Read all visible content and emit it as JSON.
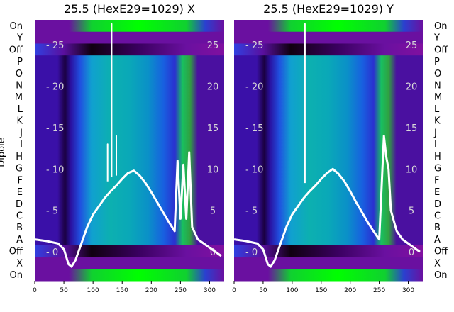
{
  "chart_data": [
    {
      "type": "heatmap",
      "title": "25.5 (HexE29=1029) X",
      "ylabel": "Dipole",
      "x_ticks": [
        0,
        50,
        100,
        150,
        200,
        250,
        300
      ],
      "xlim": [
        0,
        325
      ],
      "categories": [
        "On",
        "Y",
        "Off",
        "P",
        "O",
        "N",
        "M",
        "L",
        "K",
        "J",
        "I",
        "H",
        "G",
        "F",
        "E",
        "D",
        "C",
        "B",
        "A",
        "Off",
        "X",
        "On"
      ],
      "overlay_ticks": [
        25,
        20,
        15,
        10,
        5,
        0
      ],
      "overlay_ylim": [
        -3.5,
        28
      ],
      "overlay_series": [
        {
          "x": [
            0,
            20,
            40,
            50,
            58,
            63,
            70,
            80,
            90,
            100,
            110,
            120,
            130,
            140,
            150,
            160,
            170,
            180,
            190,
            200,
            210,
            220,
            230,
            240,
            245,
            250,
            255,
            260,
            265,
            270,
            280,
            290,
            300,
            310,
            320
          ],
          "y": [
            1.5,
            1.3,
            1.0,
            0.3,
            -1.5,
            -1.8,
            -1.0,
            1.0,
            3.0,
            4.5,
            5.5,
            6.5,
            7.3,
            8.0,
            8.8,
            9.5,
            9.8,
            9.2,
            8.3,
            7.2,
            6.0,
            4.8,
            3.6,
            2.5,
            11.0,
            4.0,
            10.5,
            4.0,
            12.0,
            3.0,
            1.5,
            1.0,
            0.5,
            0.0,
            -0.5
          ]
        },
        {
          "x": [
            125,
            125,
            125
          ],
          "y": [
            8.5,
            13.0,
            8.5
          ]
        },
        {
          "x": [
            132,
            132,
            132
          ],
          "y": [
            9.0,
            27.5,
            9.0
          ]
        },
        {
          "x": [
            140,
            140,
            140
          ],
          "y": [
            9.2,
            14.0,
            9.2
          ]
        }
      ]
    },
    {
      "type": "heatmap",
      "title": "25.5 (HexE29=1029) Y",
      "x_ticks": [
        0,
        50,
        100,
        150,
        200,
        250,
        300
      ],
      "xlim": [
        0,
        325
      ],
      "categories": [
        "On",
        "Y",
        "Off",
        "P",
        "O",
        "N",
        "M",
        "L",
        "K",
        "J",
        "I",
        "H",
        "G",
        "F",
        "E",
        "D",
        "C",
        "B",
        "A",
        "Off",
        "X",
        "On"
      ],
      "overlay_ticks": [
        25,
        20,
        15,
        10,
        5,
        0
      ],
      "overlay_ylim": [
        -3.5,
        28
      ],
      "overlay_series": [
        {
          "x": [
            0,
            20,
            40,
            50,
            58,
            63,
            70,
            80,
            90,
            100,
            110,
            120,
            130,
            140,
            150,
            160,
            170,
            180,
            190,
            200,
            210,
            220,
            230,
            240,
            250,
            258,
            262,
            266,
            270,
            280,
            290,
            300,
            310,
            320
          ],
          "y": [
            1.5,
            1.3,
            1.0,
            0.3,
            -1.5,
            -1.8,
            -1.0,
            1.0,
            3.0,
            4.5,
            5.5,
            6.5,
            7.3,
            8.0,
            8.8,
            9.5,
            10.0,
            9.4,
            8.5,
            7.3,
            6.0,
            4.8,
            3.6,
            2.5,
            1.5,
            14.0,
            11.5,
            10.0,
            5.0,
            2.5,
            1.5,
            1.0,
            0.5,
            0.0
          ]
        },
        {
          "x": [
            122,
            122,
            122
          ],
          "y": [
            8.3,
            27.5,
            8.3
          ]
        }
      ]
    }
  ]
}
